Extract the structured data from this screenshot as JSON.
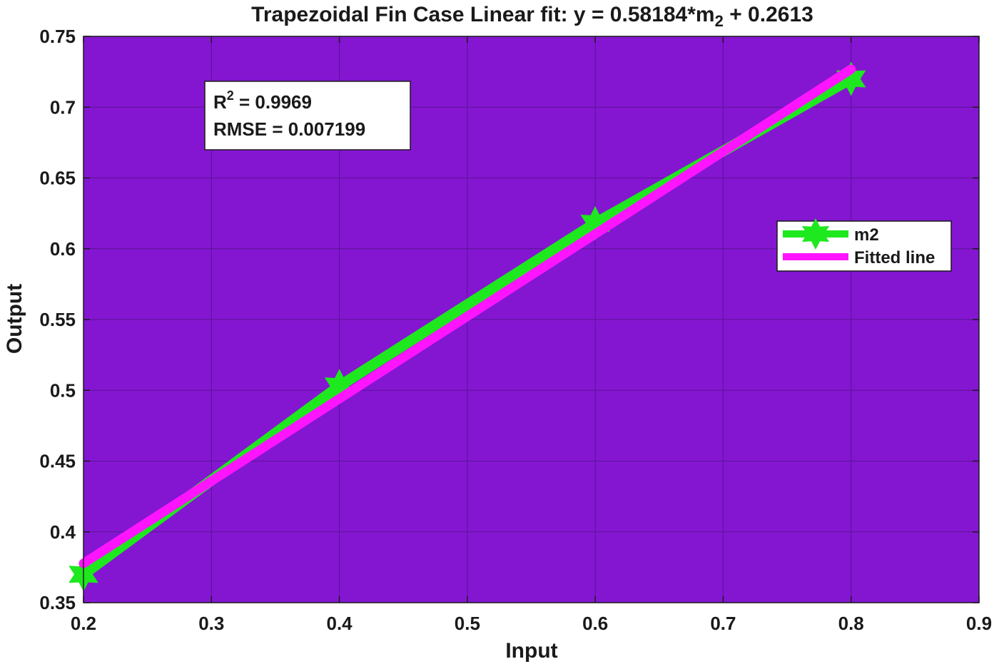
{
  "chart_data": {
    "type": "line",
    "title": {
      "prefix": "Trapezoidal Fin Case Linear fit: y = 0.58184*m",
      "subscript": "2",
      "suffix": " + 0.2613"
    },
    "xlabel": "Input",
    "ylabel": "Output",
    "xlim": [
      0.2,
      0.9
    ],
    "ylim": [
      0.35,
      0.75
    ],
    "xticks": [
      0.2,
      0.3,
      0.4,
      0.5,
      0.6,
      0.7,
      0.8,
      0.9
    ],
    "yticks": [
      0.35,
      0.4,
      0.45,
      0.5,
      0.55,
      0.6,
      0.65,
      0.7,
      0.75
    ],
    "xtick_labels": [
      "0.2",
      "0.3",
      "0.4",
      "0.5",
      "0.6",
      "0.7",
      "0.8",
      "0.9"
    ],
    "ytick_labels": [
      "0.35",
      "0.4",
      "0.45",
      "0.5",
      "0.55",
      "0.6",
      "0.65",
      "0.7",
      "0.75"
    ],
    "grid": true,
    "legend_position": "right",
    "series": [
      {
        "name": "m2",
        "color": "#1ee81e",
        "marker": "hexagram",
        "x": [
          0.2,
          0.4,
          0.6,
          0.8
        ],
        "y": [
          0.37,
          0.503,
          0.618,
          0.72
        ]
      },
      {
        "name": "Fitted line",
        "color": "#ff14ff",
        "marker": "none",
        "x": [
          0.2,
          0.8
        ],
        "y": [
          0.3777,
          0.7268
        ]
      }
    ],
    "annotation": {
      "r2_label": "R",
      "r2_sup": "2",
      "r2_text": " = 0.9969",
      "rmse_text": "RMSE = 0.007199"
    },
    "colors": {
      "plot_background": "#8416d1",
      "grid": "#5c1294"
    }
  }
}
